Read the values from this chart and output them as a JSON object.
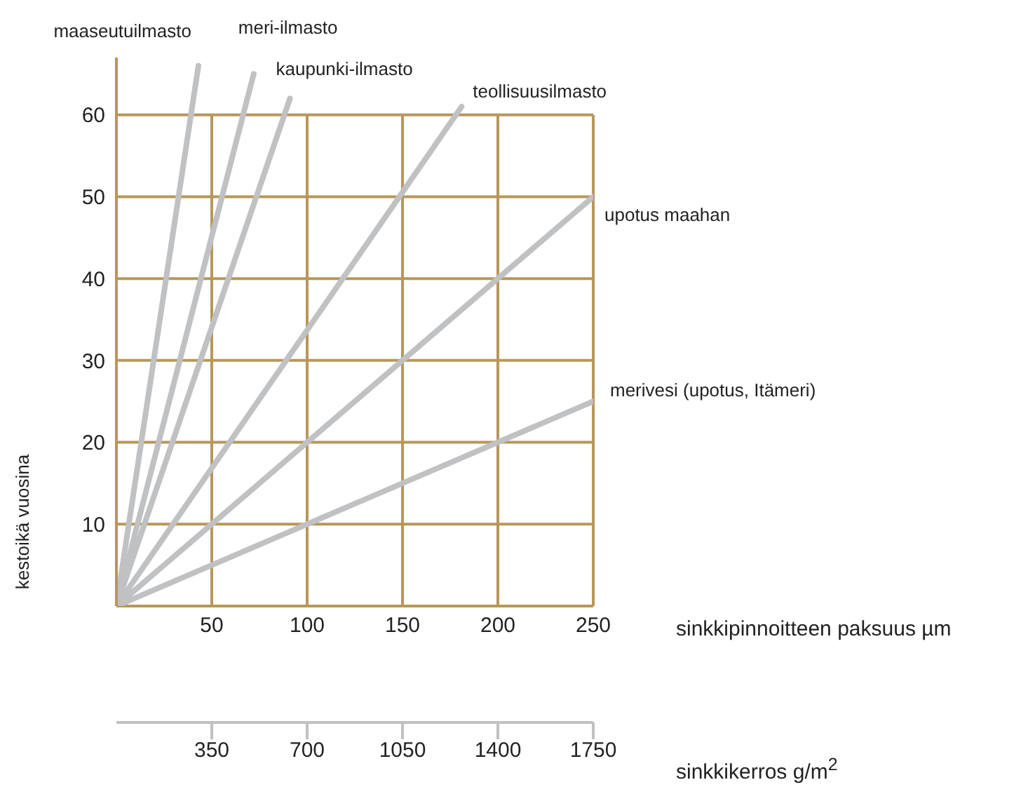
{
  "chart_data": {
    "type": "line",
    "ylabel": "kestoikä vuosina",
    "xlabel": "sinkkipinnoitteen paksuus µm",
    "x2label": "sinkkikerros g/m$^{2}$",
    "xlim": [
      0,
      250
    ],
    "xticks": [
      50,
      100,
      150,
      200,
      250
    ],
    "x2lim": [
      0,
      1750
    ],
    "x2ticks": [
      350,
      700,
      1050,
      1400,
      1750
    ],
    "ylim": [
      0,
      67
    ],
    "yticks": [
      10,
      20,
      30,
      40,
      50,
      60
    ],
    "grid": true,
    "legend": false,
    "marker": "none",
    "series": [
      {
        "name": "maaseutuilmasto",
        "color": "#c0c1c3",
        "x": [
          0,
          43
        ],
        "values": [
          0,
          66
        ]
      },
      {
        "name": "meri-ilmasto",
        "color": "#c0c1c3",
        "x": [
          0,
          72
        ],
        "values": [
          0,
          65
        ]
      },
      {
        "name": "kaupunki-ilmasto",
        "color": "#c0c1c3",
        "x": [
          0,
          91
        ],
        "values": [
          0,
          62
        ]
      },
      {
        "name": "teollisuusilmasto",
        "color": "#c0c1c3",
        "x": [
          0,
          181
        ],
        "values": [
          0,
          61
        ]
      },
      {
        "name": "upotus maahan",
        "color": "#c0c1c3",
        "x": [
          0,
          250
        ],
        "values": [
          0,
          50
        ]
      },
      {
        "name": "merivesi (upotus, Itämeri)",
        "color": "#c0c1c3",
        "x": [
          0,
          250
        ],
        "values": [
          0,
          25
        ]
      }
    ]
  }
}
